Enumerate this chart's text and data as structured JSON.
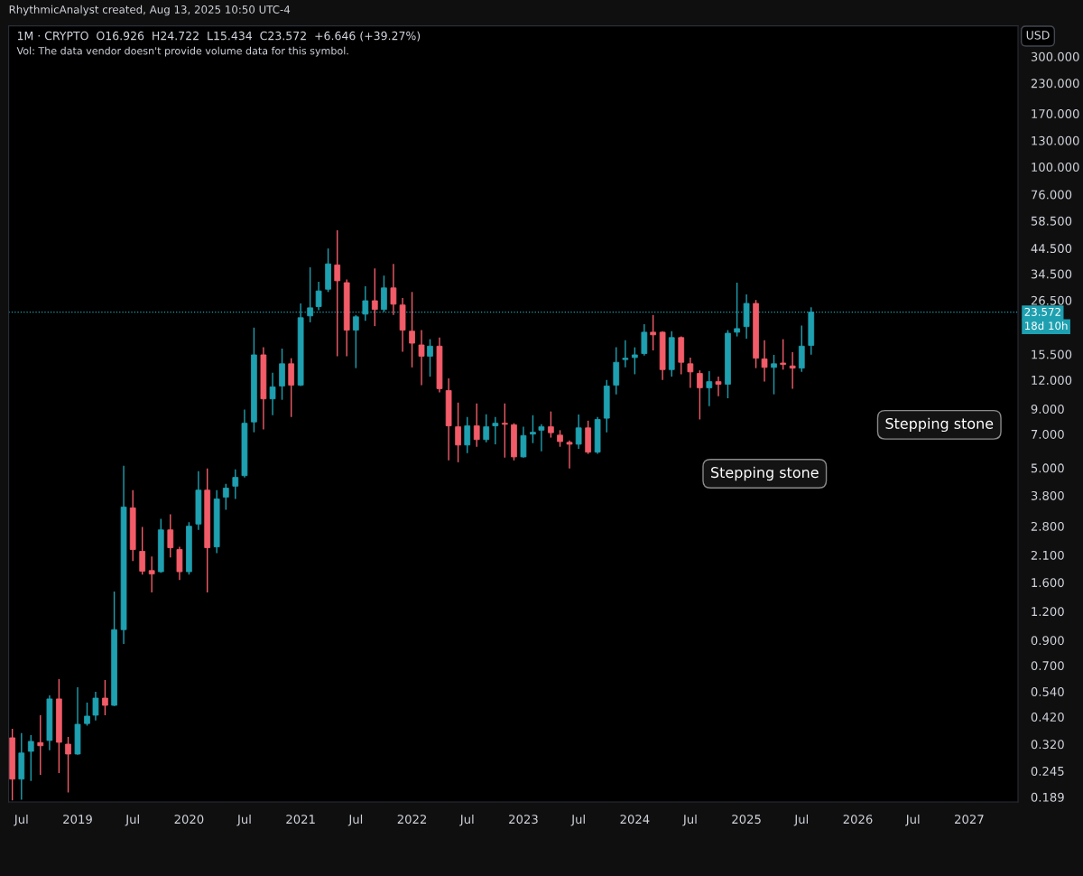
{
  "chart_data": {
    "type": "candlestick",
    "title": "1M · CRYPTO  O16.926  H24.722  L15.434  C23.572  +6.646 (+39.27%)",
    "subtitle": "Vol: The data vendor doesn't provide volume data for this symbol.",
    "ylabel": "USD",
    "log": "y",
    "grid": false,
    "legend": false,
    "x": [
      "2018-06",
      "2018-07",
      "2018-08",
      "2018-09",
      "2018-10",
      "2018-11",
      "2018-12",
      "2019-01",
      "2019-02",
      "2019-03",
      "2019-04",
      "2019-05",
      "2019-06",
      "2019-07",
      "2019-08",
      "2019-09",
      "2019-10",
      "2019-11",
      "2019-12",
      "2020-01",
      "2020-02",
      "2020-03",
      "2020-04",
      "2020-05",
      "2020-06",
      "2020-07",
      "2020-08",
      "2020-09",
      "2020-10",
      "2020-11",
      "2020-12",
      "2021-01",
      "2021-02",
      "2021-03",
      "2021-04",
      "2021-05",
      "2021-06",
      "2021-07",
      "2021-08",
      "2021-09",
      "2021-10",
      "2021-11",
      "2021-12",
      "2022-01",
      "2022-02",
      "2022-03",
      "2022-04",
      "2022-05",
      "2022-06",
      "2022-07",
      "2022-08",
      "2022-09",
      "2022-10",
      "2022-11",
      "2022-12",
      "2023-01",
      "2023-02",
      "2023-03",
      "2023-04",
      "2023-05",
      "2023-06",
      "2023-07",
      "2023-08",
      "2023-09",
      "2023-10",
      "2023-11",
      "2023-12",
      "2024-01",
      "2024-02",
      "2024-03",
      "2024-04",
      "2024-05",
      "2024-06",
      "2024-07",
      "2024-08",
      "2024-09",
      "2024-10",
      "2024-11",
      "2024-12",
      "2025-01",
      "2025-02",
      "2025-03",
      "2025-04",
      "2025-05",
      "2025-06",
      "2025-07",
      "2025-08"
    ],
    "ohlc": [
      [
        0.341,
        0.373,
        0.183,
        0.226
      ],
      [
        0.226,
        0.357,
        0.184,
        0.293
      ],
      [
        0.298,
        0.35,
        0.222,
        0.329
      ],
      [
        0.325,
        0.427,
        0.236,
        0.315
      ],
      [
        0.332,
        0.52,
        0.301,
        0.502
      ],
      [
        0.502,
        0.611,
        0.24,
        0.326
      ],
      [
        0.32,
        0.344,
        0.198,
        0.29
      ],
      [
        0.29,
        0.564,
        0.288,
        0.39
      ],
      [
        0.393,
        0.484,
        0.385,
        0.423
      ],
      [
        0.427,
        0.539,
        0.405,
        0.506
      ],
      [
        0.506,
        0.606,
        0.427,
        0.471
      ],
      [
        0.471,
        1.46,
        0.468,
        1.0
      ],
      [
        1.0,
        5.11,
        0.867,
        3.39
      ],
      [
        3.36,
        4.01,
        1.98,
        2.22
      ],
      [
        2.18,
        2.78,
        1.73,
        1.79
      ],
      [
        1.8,
        2.07,
        1.45,
        1.74
      ],
      [
        1.78,
        3.01,
        1.76,
        2.7
      ],
      [
        2.7,
        3.15,
        2.05,
        2.26
      ],
      [
        2.22,
        2.28,
        1.64,
        1.78
      ],
      [
        1.78,
        2.91,
        1.73,
        2.8
      ],
      [
        2.86,
        4.84,
        2.7,
        4.01
      ],
      [
        4.01,
        4.97,
        1.45,
        2.26
      ],
      [
        2.28,
        4.01,
        2.14,
        3.67
      ],
      [
        3.74,
        4.27,
        3.3,
        4.09
      ],
      [
        4.17,
        4.93,
        3.67,
        4.55
      ],
      [
        4.63,
        8.93,
        4.55,
        7.8
      ],
      [
        7.9,
        20.2,
        7.13,
        15.4
      ],
      [
        15.4,
        16.6,
        7.34,
        9.94
      ],
      [
        9.94,
        12.9,
        8.45,
        11.2
      ],
      [
        11.3,
        16.4,
        9.85,
        14.1
      ],
      [
        14.1,
        14.9,
        8.3,
        11.4
      ],
      [
        11.4,
        25.7,
        11.3,
        22.3
      ],
      [
        22.7,
        36.8,
        21.3,
        24.6
      ],
      [
        24.9,
        31.9,
        24.0,
        29.1
      ],
      [
        29.6,
        44.4,
        28.8,
        38.1
      ],
      [
        37.7,
        53.2,
        15.2,
        32.2
      ],
      [
        31.6,
        32.6,
        15.2,
        19.7
      ],
      [
        19.7,
        22.9,
        13.5,
        22.5
      ],
      [
        23.1,
        30.5,
        21.6,
        26.4
      ],
      [
        26.4,
        36.4,
        20.5,
        24.2
      ],
      [
        24.2,
        33.9,
        23.6,
        30.0
      ],
      [
        30.0,
        38.1,
        22.9,
        25.5
      ],
      [
        25.3,
        27.1,
        15.9,
        19.7
      ],
      [
        19.5,
        28.8,
        13.6,
        17.3
      ],
      [
        17.0,
        19.7,
        11.4,
        15.2
      ],
      [
        15.2,
        18.0,
        12.4,
        16.8
      ],
      [
        16.8,
        18.3,
        10.6,
        11.0
      ],
      [
        10.8,
        12.2,
        5.39,
        7.6
      ],
      [
        7.53,
        9.58,
        5.29,
        6.28
      ],
      [
        6.28,
        8.3,
        5.79,
        7.6
      ],
      [
        7.6,
        9.5,
        6.17,
        6.63
      ],
      [
        6.63,
        8.53,
        6.45,
        7.53
      ],
      [
        7.6,
        8.3,
        6.33,
        7.8
      ],
      [
        7.8,
        9.5,
        5.54,
        7.72
      ],
      [
        7.68,
        7.8,
        5.39,
        5.58
      ],
      [
        5.58,
        7.53,
        5.54,
        6.9
      ],
      [
        7.0,
        8.45,
        6.4,
        7.13
      ],
      [
        7.28,
        7.72,
        5.9,
        7.53
      ],
      [
        7.53,
        8.77,
        6.76,
        7.1
      ],
      [
        6.93,
        7.28,
        6.17,
        6.5
      ],
      [
        6.45,
        6.57,
        4.97,
        6.33
      ],
      [
        6.33,
        8.5,
        6.05,
        7.45
      ],
      [
        7.45,
        8.0,
        5.75,
        5.85
      ],
      [
        5.85,
        8.3,
        5.75,
        8.1
      ],
      [
        8.2,
        12.0,
        7.13,
        11.3
      ],
      [
        11.4,
        16.6,
        10.4,
        14.3
      ],
      [
        14.7,
        17.8,
        13.6,
        14.9
      ],
      [
        15.0,
        16.6,
        12.7,
        15.4
      ],
      [
        15.6,
        20.9,
        15.3,
        19.3
      ],
      [
        19.3,
        22.9,
        16.1,
        18.8
      ],
      [
        19.3,
        19.5,
        12.0,
        13.3
      ],
      [
        13.3,
        19.5,
        12.4,
        18.3
      ],
      [
        18.3,
        18.5,
        12.7,
        14.3
      ],
      [
        14.1,
        15.0,
        11.1,
        13.0
      ],
      [
        12.8,
        13.2,
        8.1,
        11.1
      ],
      [
        11.1,
        13.1,
        9.25,
        11.8
      ],
      [
        11.8,
        12.4,
        10.2,
        11.5
      ],
      [
        11.5,
        19.7,
        10.0,
        19.1
      ],
      [
        19.3,
        31.6,
        18.5,
        20.0
      ],
      [
        20.4,
        28.1,
        18.1,
        25.7
      ],
      [
        25.7,
        26.6,
        13.5,
        14.9
      ],
      [
        14.8,
        17.8,
        11.8,
        13.6
      ],
      [
        13.6,
        15.4,
        10.4,
        14.1
      ],
      [
        14.2,
        18.0,
        13.3,
        14.0
      ],
      [
        13.8,
        15.8,
        11.0,
        13.5
      ],
      [
        13.5,
        20.6,
        13.0,
        16.8
      ],
      [
        16.926,
        24.722,
        15.434,
        23.572
      ]
    ],
    "colors": [
      "#f25c68",
      "#1ea0b0",
      "#1ea0b0",
      "#f25c68",
      "#1ea0b0",
      "#f25c68",
      "#f25c68",
      "#1ea0b0",
      "#1ea0b0",
      "#1ea0b0",
      "#f25c68",
      "#1ea0b0",
      "#1ea0b0",
      "#f25c68",
      "#f25c68",
      "#f25c68",
      "#1ea0b0",
      "#f25c68",
      "#f25c68",
      "#1ea0b0",
      "#1ea0b0",
      "#f25c68",
      "#1ea0b0",
      "#1ea0b0",
      "#1ea0b0",
      "#1ea0b0",
      "#1ea0b0",
      "#f25c68",
      "#1ea0b0",
      "#1ea0b0",
      "#f25c68",
      "#1ea0b0",
      "#1ea0b0",
      "#1ea0b0",
      "#1ea0b0",
      "#f25c68",
      "#f25c68",
      "#1ea0b0",
      "#1ea0b0",
      "#f25c68",
      "#1ea0b0",
      "#f25c68",
      "#f25c68",
      "#f25c68",
      "#f25c68",
      "#1ea0b0",
      "#f25c68",
      "#f25c68",
      "#f25c68",
      "#1ea0b0",
      "#f25c68",
      "#1ea0b0",
      "#1ea0b0",
      "#f25c68",
      "#f25c68",
      "#1ea0b0",
      "#1ea0b0",
      "#1ea0b0",
      "#f25c68",
      "#f25c68",
      "#f25c68",
      "#1ea0b0",
      "#f25c68",
      "#1ea0b0",
      "#1ea0b0",
      "#1ea0b0",
      "#1ea0b0",
      "#1ea0b0",
      "#1ea0b0",
      "#f25c68",
      "#f25c68",
      "#1ea0b0",
      "#f25c68",
      "#f25c68",
      "#f25c68",
      "#1ea0b0",
      "#f25c68",
      "#1ea0b0",
      "#1ea0b0",
      "#1ea0b0",
      "#f25c68",
      "#f25c68",
      "#1ea0b0",
      "#f25c68",
      "#f25c68",
      "#1ea0b0",
      "#1ea0b0"
    ],
    "xlim": [
      "2018-05-20",
      "2027-06-10"
    ],
    "xticks": [
      {
        "value": "2018-07",
        "label": "Jul"
      },
      {
        "value": "2019-01",
        "label": "2019"
      },
      {
        "value": "2019-07",
        "label": "Jul"
      },
      {
        "value": "2020-01",
        "label": "2020"
      },
      {
        "value": "2020-07",
        "label": "Jul"
      },
      {
        "value": "2021-01",
        "label": "2021"
      },
      {
        "value": "2021-07",
        "label": "Jul"
      },
      {
        "value": "2022-01",
        "label": "2022"
      },
      {
        "value": "2022-07",
        "label": "Jul"
      },
      {
        "value": "2023-01",
        "label": "2023"
      },
      {
        "value": "2023-07",
        "label": "Jul"
      },
      {
        "value": "2024-01",
        "label": "2024"
      },
      {
        "value": "2024-07",
        "label": "Jul"
      },
      {
        "value": "2025-01",
        "label": "2025"
      },
      {
        "value": "2025-07",
        "label": "Jul"
      },
      {
        "value": "2026-01",
        "label": "2026"
      },
      {
        "value": "2026-07",
        "label": "Jul"
      },
      {
        "value": "2027-01",
        "label": "2027"
      }
    ],
    "ylim": [
      0.18,
      407
    ],
    "yticks": [
      {
        "value": 0.189,
        "label": "0.189"
      },
      {
        "value": 0.245,
        "label": "0.245"
      },
      {
        "value": 0.32,
        "label": "0.320"
      },
      {
        "value": 0.42,
        "label": "0.420"
      },
      {
        "value": 0.54,
        "label": "0.540"
      },
      {
        "value": 0.7,
        "label": "0.700"
      },
      {
        "value": 0.9,
        "label": "0.900"
      },
      {
        "value": 1.2,
        "label": "1.200"
      },
      {
        "value": 1.6,
        "label": "1.600"
      },
      {
        "value": 2.1,
        "label": "2.100"
      },
      {
        "value": 2.8,
        "label": "2.800"
      },
      {
        "value": 3.8,
        "label": "3.800"
      },
      {
        "value": 5,
        "label": "5.000"
      },
      {
        "value": 7,
        "label": "7.000"
      },
      {
        "value": 9,
        "label": "9.000"
      },
      {
        "value": 12,
        "label": "12.000"
      },
      {
        "value": 15.5,
        "label": "15.500"
      },
      {
        "value": 26.5,
        "label": "26.500"
      },
      {
        "value": 34.5,
        "label": "34.500"
      },
      {
        "value": 44.5,
        "label": "44.500"
      },
      {
        "value": 58.5,
        "label": "58.500"
      },
      {
        "value": 76,
        "label": "76.000"
      },
      {
        "value": 100,
        "label": "100.000"
      },
      {
        "value": 130,
        "label": "130.000"
      },
      {
        "value": 170,
        "label": "170.000"
      },
      {
        "value": 230,
        "label": "230.000"
      },
      {
        "value": 300,
        "label": "300.000"
      }
    ],
    "ref_lines": [
      {
        "axis": "y",
        "value": 23.572,
        "label": "23.572",
        "color": "#1ea0b0",
        "line_style": "dotted"
      }
    ],
    "annotations": [
      "Stepping stone",
      "Stepping stone",
      "RhythmicAnalyst created, Aug 13, 2025 10:50 UTC-4",
      "18d 10h"
    ]
  }
}
